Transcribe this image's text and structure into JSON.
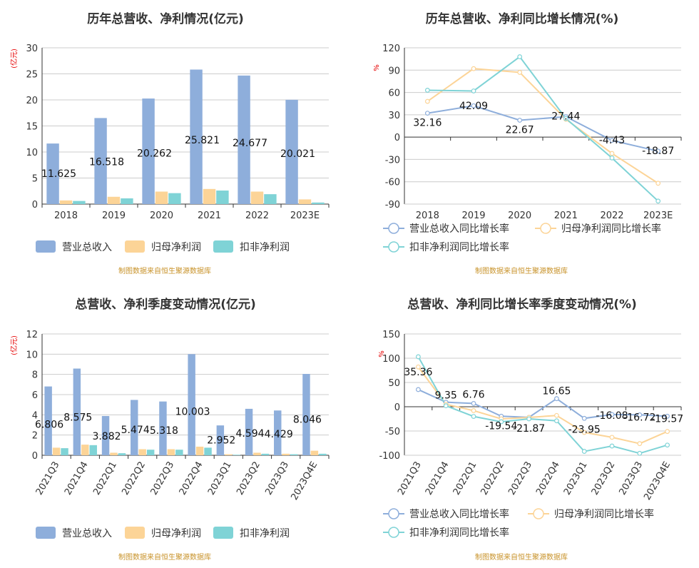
{
  "source_text": "制图数据来自恒生聚源数据库",
  "colors": {
    "revenue": "#8eaedb",
    "net_profit": "#fcd497",
    "deducted_profit": "#7fd3d6"
  },
  "chart_data": [
    {
      "type": "bar",
      "title": "历年总营收、净利情况(亿元)",
      "ylabel": "(亿元)",
      "ylim": [
        0,
        30
      ],
      "yticks": [
        0,
        5,
        10,
        15,
        20,
        25,
        30
      ],
      "categories": [
        "2018",
        "2019",
        "2020",
        "2021",
        "2022",
        "2023E"
      ],
      "series": [
        {
          "name": "营业总收入",
          "values": [
            11.625,
            16.518,
            20.262,
            25.821,
            24.677,
            20.021
          ]
        },
        {
          "name": "归母净利润",
          "values": [
            0.7,
            1.4,
            2.4,
            2.9,
            2.4,
            0.9
          ]
        },
        {
          "name": "扣非净利润",
          "values": [
            0.6,
            1.1,
            2.1,
            2.6,
            1.9,
            0.3
          ]
        }
      ],
      "labels": [
        "11.625",
        "16.518",
        "20.262",
        "25.821",
        "24.677",
        "20.021"
      ]
    },
    {
      "type": "line",
      "title": "历年总营收、净利同比增长情况(%)",
      "ylabel": "%",
      "ylim": [
        -90,
        120
      ],
      "yticks": [
        -90,
        -60,
        -30,
        0,
        30,
        60,
        90,
        120
      ],
      "categories": [
        "2018",
        "2019",
        "2020",
        "2021",
        "2022",
        "2023E"
      ],
      "series": [
        {
          "name": "营业总收入同比增长率",
          "values": [
            32.16,
            42.09,
            22.67,
            27.44,
            -4.43,
            -18.87
          ]
        },
        {
          "name": "归母净利润同比增长率",
          "values": [
            48,
            92,
            87,
            24,
            -22,
            -62
          ]
        },
        {
          "name": "扣非净利润同比增长率",
          "values": [
            63,
            62,
            108,
            25,
            -28,
            -86
          ]
        }
      ],
      "labels": [
        "32.16",
        "42.09",
        "22.67",
        "27.44",
        "-4.43",
        "-18.87"
      ]
    },
    {
      "type": "bar",
      "title": "总营收、净利季度变动情况(亿元)",
      "ylabel": "(亿元)",
      "ylim": [
        0,
        12
      ],
      "yticks": [
        0,
        2,
        4,
        6,
        8,
        10,
        12
      ],
      "categories": [
        "2021Q3",
        "2021Q4",
        "2022Q1",
        "2022Q2",
        "2022Q3",
        "2022Q4",
        "2023Q1",
        "2023Q2",
        "2023Q3",
        "2023Q4E"
      ],
      "series": [
        {
          "name": "营业总收入",
          "values": [
            6.806,
            8.575,
            3.882,
            5.474,
            5.318,
            10.003,
            2.952,
            4.594,
            4.429,
            8.046
          ]
        },
        {
          "name": "归母净利润",
          "values": [
            0.75,
            1.05,
            0.25,
            0.6,
            0.6,
            0.85,
            0.1,
            0.25,
            0.15,
            0.45
          ]
        },
        {
          "name": "扣非净利润",
          "values": [
            0.7,
            1.0,
            0.2,
            0.55,
            0.55,
            0.75,
            0.05,
            0.15,
            0.1,
            0.15
          ]
        }
      ],
      "labels": [
        "6.806",
        "8.575",
        "3.882",
        "5.474",
        "5.318",
        "10.003",
        "2.952",
        "4.594",
        "4.429",
        "8.046"
      ]
    },
    {
      "type": "line",
      "title": "总营收、净利同比增长率季度变动情况(%)",
      "ylabel": "%",
      "ylim": [
        -100,
        150
      ],
      "yticks": [
        -100,
        -50,
        0,
        50,
        100,
        150
      ],
      "categories": [
        "2021Q3",
        "2021Q4",
        "2022Q1",
        "2022Q2",
        "2022Q3",
        "2022Q4",
        "2023Q1",
        "2023Q2",
        "2023Q3",
        "2023Q4E"
      ],
      "series": [
        {
          "name": "营业总收入同比增长率",
          "values": [
            35.36,
            9.35,
            6.76,
            -19.54,
            -21.87,
            16.65,
            -23.95,
            -16.08,
            -16.72,
            -19.57
          ]
        },
        {
          "name": "归母净利润同比增长率",
          "values": [
            82,
            5,
            -8,
            -25,
            -22,
            -18,
            -53,
            -63,
            -76,
            -51
          ]
        },
        {
          "name": "扣非净利润同比增长率",
          "values": [
            103,
            2,
            -20,
            -31,
            -25,
            -29,
            -92,
            -81,
            -96,
            -79
          ]
        }
      ],
      "labels": [
        "35.36",
        "9.35",
        "6.76",
        "-19.54",
        "-21.87",
        "16.65",
        "-23.95",
        "-16.08",
        "-16.72",
        "-19.57"
      ]
    }
  ]
}
